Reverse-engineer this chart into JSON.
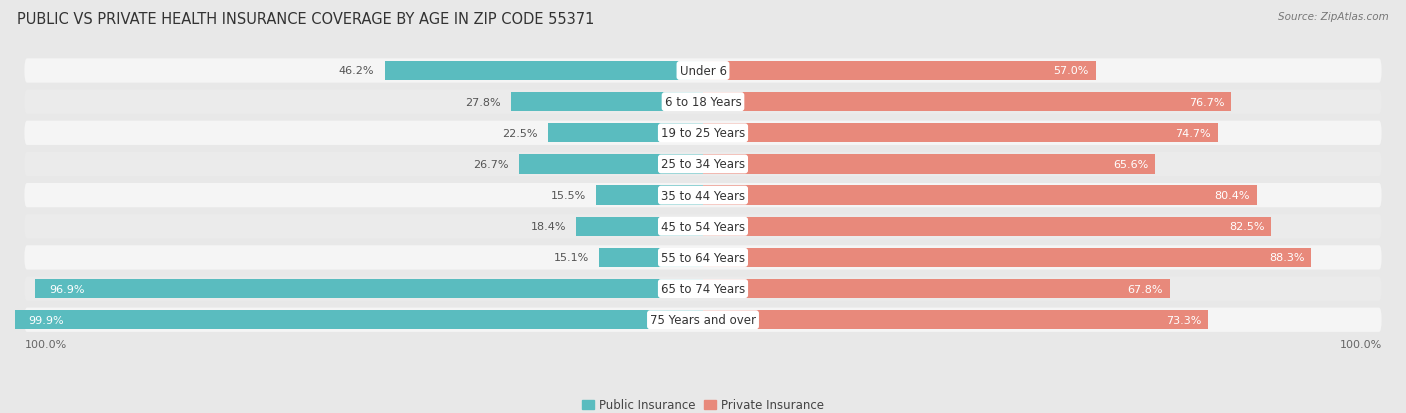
{
  "title": "PUBLIC VS PRIVATE HEALTH INSURANCE COVERAGE BY AGE IN ZIP CODE 55371",
  "source": "Source: ZipAtlas.com",
  "categories": [
    "Under 6",
    "6 to 18 Years",
    "19 to 25 Years",
    "25 to 34 Years",
    "35 to 44 Years",
    "45 to 54 Years",
    "55 to 64 Years",
    "65 to 74 Years",
    "75 Years and over"
  ],
  "public_values": [
    46.2,
    27.8,
    22.5,
    26.7,
    15.5,
    18.4,
    15.1,
    96.9,
    99.9
  ],
  "private_values": [
    57.0,
    76.7,
    74.7,
    65.6,
    80.4,
    82.5,
    88.3,
    67.8,
    73.3
  ],
  "public_color": "#5abcbf",
  "private_color": "#e8897b",
  "bg_color": "#e8e8e8",
  "row_light_color": "#f0f0f0",
  "row_dark_color": "#e0e0e0",
  "max_val": 100.0,
  "bar_height": 0.62,
  "title_fontsize": 10.5,
  "source_fontsize": 7.5,
  "label_fontsize": 8.0,
  "category_fontsize": 8.5,
  "value_fontsize": 8.0
}
